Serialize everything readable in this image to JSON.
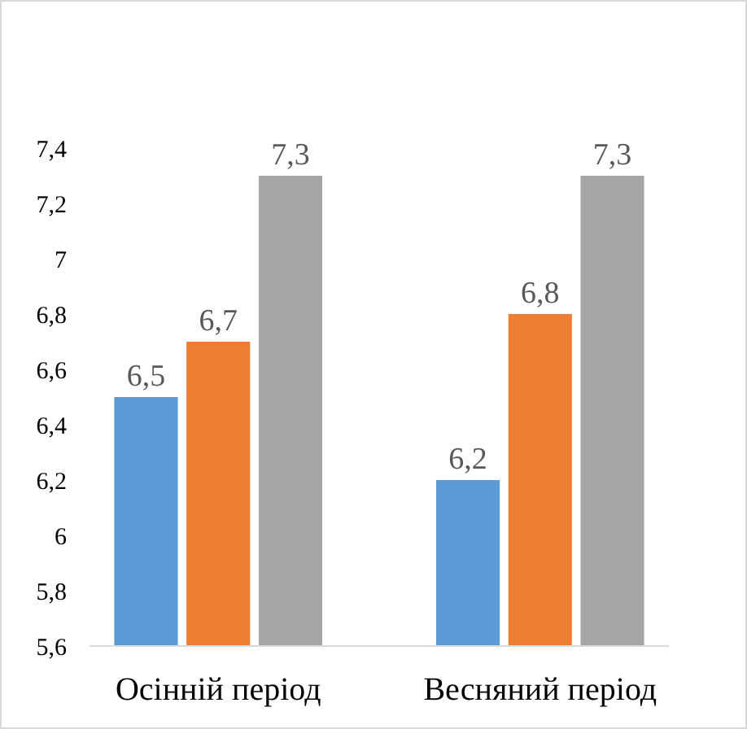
{
  "chart_data": {
    "type": "bar",
    "categories": [
      "Осінній період",
      "Весняний період"
    ],
    "series": [
      {
        "color": "#5b9bd5",
        "values": [
          6.5,
          6.2
        ],
        "value_labels": [
          "6,5",
          "6,2"
        ]
      },
      {
        "color": "#ed7d31",
        "values": [
          6.7,
          6.8
        ],
        "value_labels": [
          "6,7",
          "6,8"
        ]
      },
      {
        "color": "#a5a5a5",
        "values": [
          7.3,
          7.3
        ],
        "value_labels": [
          "7,3",
          "7,3"
        ]
      }
    ],
    "ylim": [
      5.6,
      7.4
    ],
    "yticks": [
      {
        "value": 5.6,
        "label": "5,6"
      },
      {
        "value": 5.8,
        "label": "5,8"
      },
      {
        "value": 6,
        "label": "6"
      },
      {
        "value": 6.2,
        "label": "6,2"
      },
      {
        "value": 6.4,
        "label": "6,4"
      },
      {
        "value": 6.6,
        "label": "6,6"
      },
      {
        "value": 6.8,
        "label": "6,8"
      },
      {
        "value": 7,
        "label": "7"
      },
      {
        "value": 7.2,
        "label": "7,2"
      },
      {
        "value": 7.4,
        "label": "7,4"
      }
    ],
    "grid": false
  }
}
